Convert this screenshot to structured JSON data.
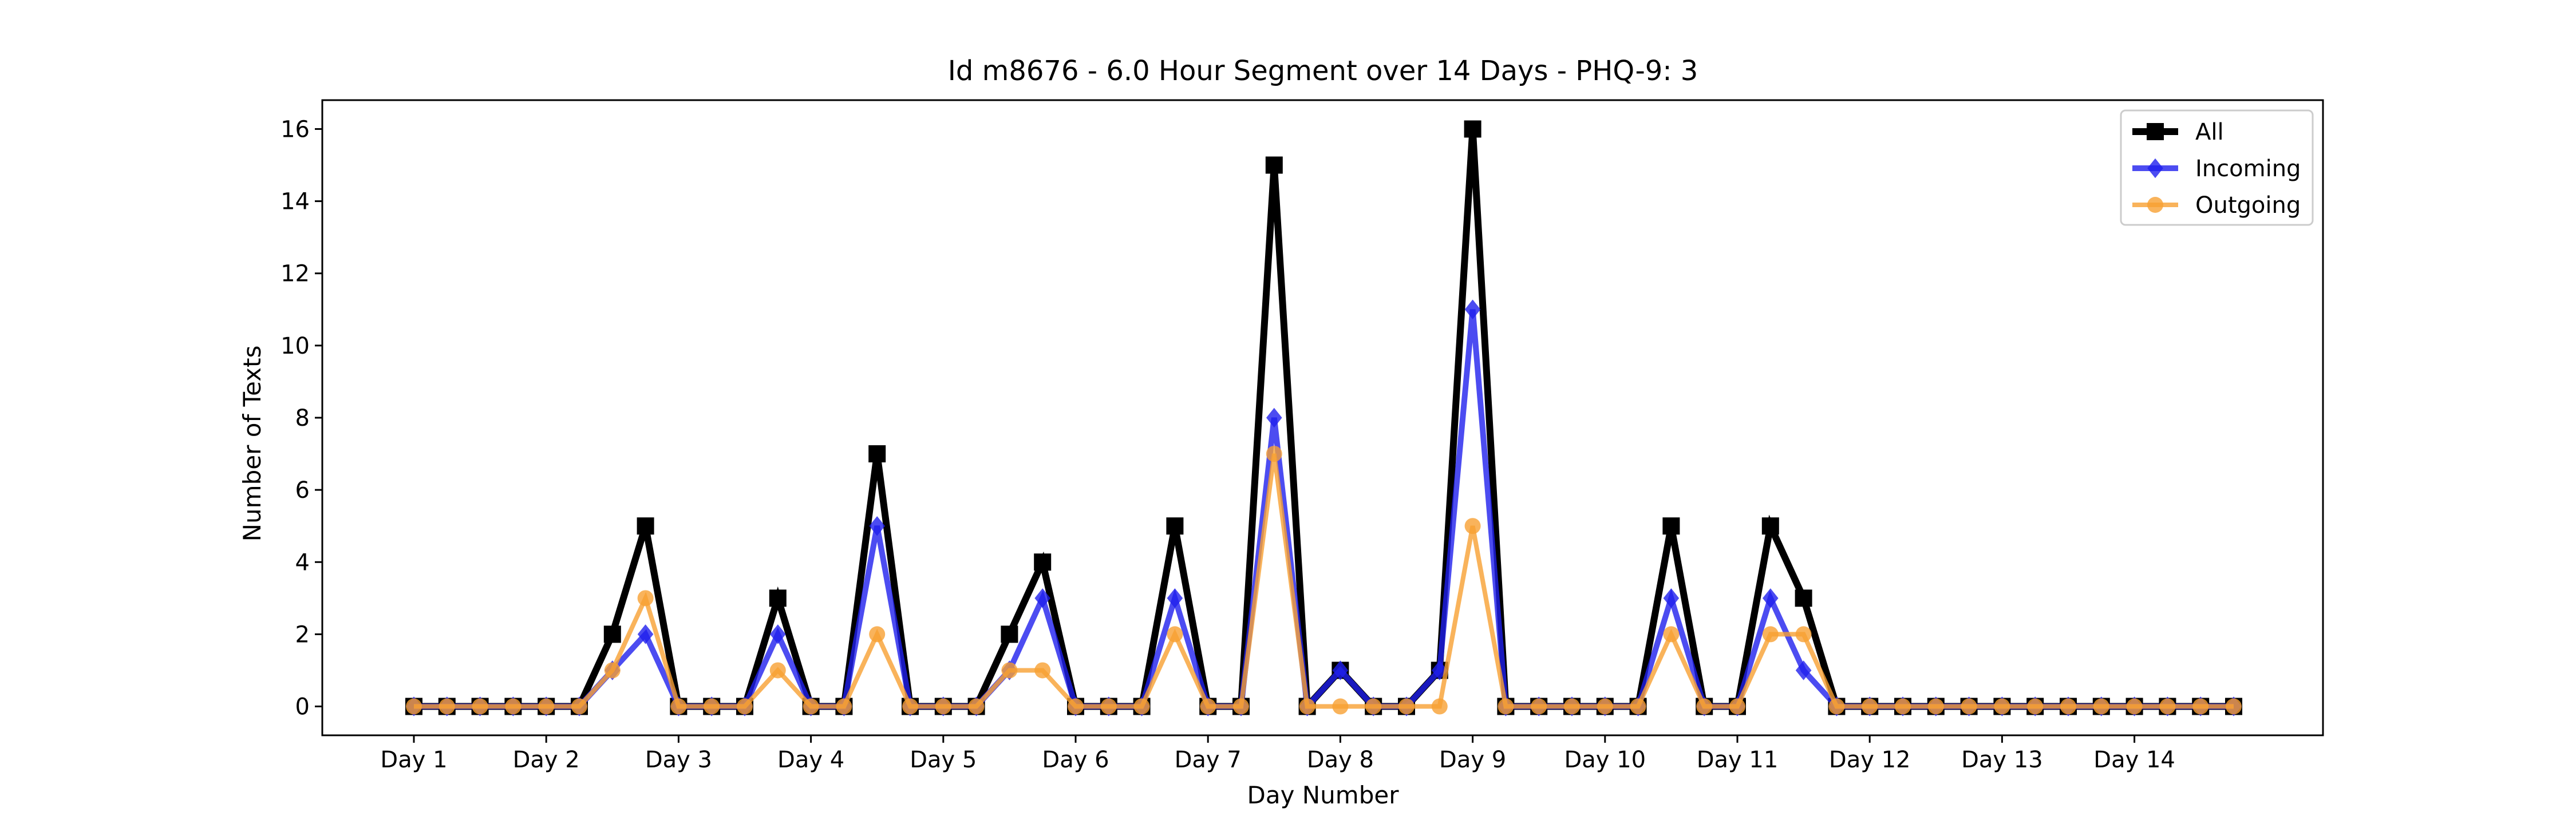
{
  "chart_data": {
    "type": "line",
    "title": "Id m8676 - 6.0 Hour Segment over 14 Days - PHQ-9: 3",
    "xlabel": "Day Number",
    "ylabel": "Number of Texts",
    "x_tick_labels": [
      "Day 1",
      "Day 2",
      "Day 3",
      "Day 4",
      "Day 5",
      "Day 6",
      "Day 7",
      "Day 8",
      "Day 9",
      "Day 10",
      "Day 11",
      "Day 12",
      "Day 13",
      "Day 14"
    ],
    "y_ticks": [
      0,
      2,
      4,
      6,
      8,
      10,
      12,
      14,
      16
    ],
    "ylim": [
      -0.8,
      16.8
    ],
    "grid": false,
    "legend_position": "top-right",
    "series": [
      {
        "name": "All",
        "color": "#000000",
        "marker": "square",
        "values": [
          0,
          0,
          0,
          0,
          0,
          0,
          2,
          5,
          0,
          0,
          0,
          3,
          0,
          0,
          7,
          0,
          0,
          0,
          2,
          4,
          0,
          0,
          0,
          5,
          0,
          0,
          15,
          0,
          1,
          0,
          0,
          1,
          16,
          0,
          0,
          0,
          0,
          0,
          5,
          0,
          0,
          5,
          3,
          0,
          0,
          0,
          0,
          0,
          0,
          0,
          0,
          0,
          0,
          0,
          0,
          0
        ]
      },
      {
        "name": "Incoming",
        "color": "#1f1fee",
        "marker": "diamond",
        "values": [
          0,
          0,
          0,
          0,
          0,
          0,
          1,
          2,
          0,
          0,
          0,
          2,
          0,
          0,
          5,
          0,
          0,
          0,
          1,
          3,
          0,
          0,
          0,
          3,
          0,
          0,
          8,
          0,
          1,
          0,
          0,
          1,
          11,
          0,
          0,
          0,
          0,
          0,
          3,
          0,
          0,
          3,
          1,
          0,
          0,
          0,
          0,
          0,
          0,
          0,
          0,
          0,
          0,
          0,
          0,
          0
        ]
      },
      {
        "name": "Outgoing",
        "color": "#f7a032",
        "marker": "circle",
        "values": [
          0,
          0,
          0,
          0,
          0,
          0,
          1,
          3,
          0,
          0,
          0,
          1,
          0,
          0,
          2,
          0,
          0,
          0,
          1,
          1,
          0,
          0,
          0,
          2,
          0,
          0,
          7,
          0,
          0,
          0,
          0,
          0,
          5,
          0,
          0,
          0,
          0,
          0,
          2,
          0,
          0,
          2,
          2,
          0,
          0,
          0,
          0,
          0,
          0,
          0,
          0,
          0,
          0,
          0,
          0,
          0
        ]
      }
    ]
  }
}
